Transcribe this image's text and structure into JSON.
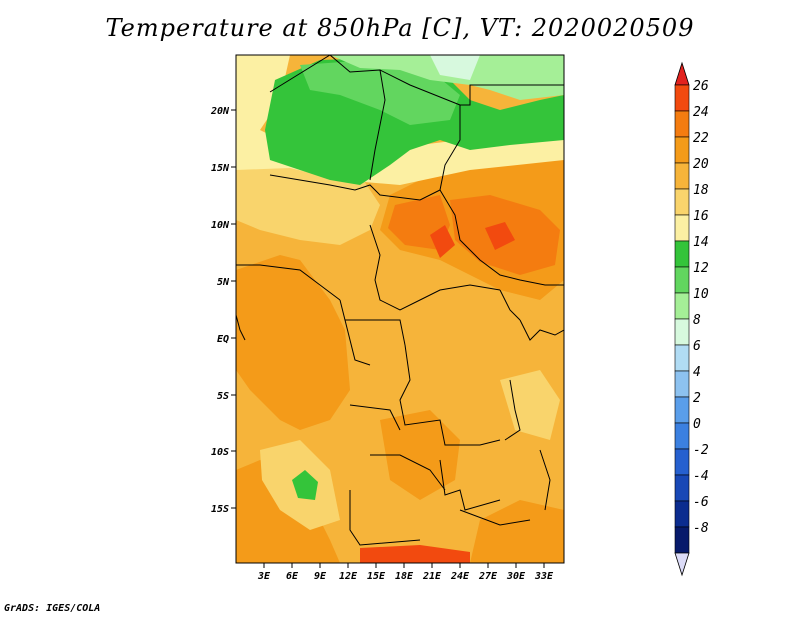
{
  "title": "Temperature at 850hPa [C], VT: 2020020509",
  "footer": "GrADS: IGES/COLA",
  "map": {
    "lat_labels": [
      "20N",
      "15N",
      "10N",
      "5N",
      "EQ",
      "5S",
      "10S",
      "15S"
    ],
    "lon_labels": [
      "3E",
      "6E",
      "9E",
      "12E",
      "15E",
      "18E",
      "21E",
      "24E",
      "27E",
      "30E",
      "33E"
    ],
    "lon_range": [
      0,
      35
    ],
    "lat_range": [
      -19,
      25
    ]
  },
  "colorbar": {
    "levels": [
      "26",
      "24",
      "22",
      "20",
      "18",
      "16",
      "14",
      "12",
      "10",
      "8",
      "6",
      "4",
      "2",
      "0",
      "-2",
      "-4",
      "-6",
      "-8"
    ],
    "colors": [
      "#e2221e",
      "#f24a0f",
      "#f47c10",
      "#f49b19",
      "#f6b43a",
      "#f9d46c",
      "#fcf0a3",
      "#34c43a",
      "#62d65f",
      "#a5ef97",
      "#d7f9de",
      "#b1dcf4",
      "#8dc2f0",
      "#5a9eea",
      "#3b80e0",
      "#2660cf",
      "#1848b6",
      "#0b2c8f",
      "#071a6b",
      "#dcdcf8"
    ]
  }
}
